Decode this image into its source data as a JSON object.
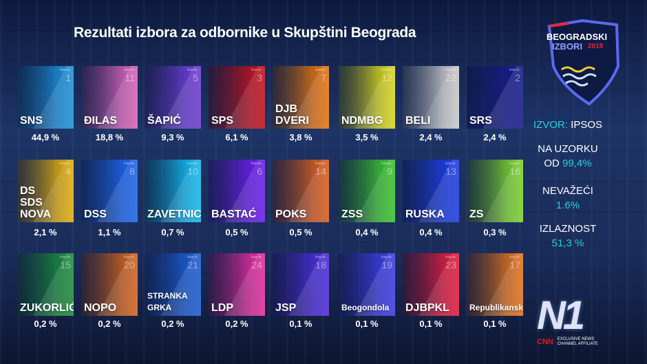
{
  "title": "Rezultati izbora za odbornike u Skupštini Beograda",
  "list_label": "lista br.",
  "logo": {
    "line1": "BEOGRADSKI",
    "line2": "IZBORI",
    "year": "2018"
  },
  "side": {
    "source_label": "IZVOR:",
    "source": "IPSOS",
    "sample_line1": "NA UZORKU",
    "sample_line2": "OD",
    "sample_value": "99,4%",
    "invalid_label": "NEVAŽEĆI",
    "invalid_value": "1.6%",
    "turnout_label": "IZLAZNOST",
    "turnout_value": "51,3 %"
  },
  "n1": {
    "brand": "N1",
    "cnn": "CNN",
    "tagline1": "EXCLUSIVE NEWS",
    "tagline2": "CHANNEL AFFILIATE"
  },
  "parties": [
    {
      "name": "SNS",
      "list": "1",
      "pct": "44,9 %",
      "color": "#1a8fd6"
    },
    {
      "name": "ĐILAS",
      "list": "11",
      "pct": "18,8 %",
      "color": "#d45fb4"
    },
    {
      "name": "ŠAPIĆ",
      "list": "5",
      "pct": "9,3 %",
      "color": "#6b3ad0"
    },
    {
      "name": "SPS",
      "list": "3",
      "pct": "6,1 %",
      "color": "#c0101a"
    },
    {
      "name": "DJB\nDVERI",
      "list": "7",
      "pct": "3,8 %",
      "color": "#e2730e"
    },
    {
      "name": "NDMBG",
      "list": "12",
      "pct": "3,5 %",
      "color": "#d6d41a"
    },
    {
      "name": "BELI",
      "list": "22",
      "pct": "2,4 %",
      "color": "#c8c8c8"
    },
    {
      "name": "SRS",
      "list": "2",
      "pct": "2,4 %",
      "color": "#15188a"
    },
    {
      "name": "DS\nSDS\nNOVA",
      "list": "4",
      "pct": "2,1 %",
      "color": "#e0aa0a"
    },
    {
      "name": "DSS",
      "list": "8",
      "pct": "1,1 %",
      "color": "#1a62e8"
    },
    {
      "name": "ZAVETNICI",
      "list": "10",
      "pct": "0,7 %",
      "color": "#10b8e8"
    },
    {
      "name": "BASTAĆ",
      "list": "6",
      "pct": "0,5 %",
      "color": "#6a1ae8"
    },
    {
      "name": "POKS",
      "list": "14",
      "pct": "0,5 %",
      "color": "#d85a1a"
    },
    {
      "name": "ZSS",
      "list": "9",
      "pct": "0,4 %",
      "color": "#3ac02a"
    },
    {
      "name": "RUSKA",
      "list": "13",
      "pct": "0,4 %",
      "color": "#1a3ae0"
    },
    {
      "name": "ZS",
      "list": "16",
      "pct": "0,3 %",
      "color": "#7ad02a"
    },
    {
      "name": "ZUKORLIĆ",
      "list": "15",
      "pct": "0,2 %",
      "color": "#1a8a3a"
    },
    {
      "name": "NOPO",
      "list": "20",
      "pct": "0,2 %",
      "color": "#d0601a"
    },
    {
      "name": "STRANKA\nGRKA",
      "list": "21",
      "pct": "0,2 %",
      "color": "#1a5ad0"
    },
    {
      "name": "LDP",
      "list": "24",
      "pct": "0,2 %",
      "color": "#e02a9a"
    },
    {
      "name": "JSP",
      "list": "18",
      "pct": "0,1 %",
      "color": "#4a2ad8"
    },
    {
      "name": "Beogondola",
      "list": "19",
      "pct": "0,1 %",
      "color": "#3a3ae0"
    },
    {
      "name": "DJBPKL",
      "list": "23",
      "pct": "0,1 %",
      "color": "#e01a3a"
    },
    {
      "name": "Republikanska",
      "list": "17",
      "pct": "0,1 %",
      "color": "#e0701a"
    }
  ]
}
